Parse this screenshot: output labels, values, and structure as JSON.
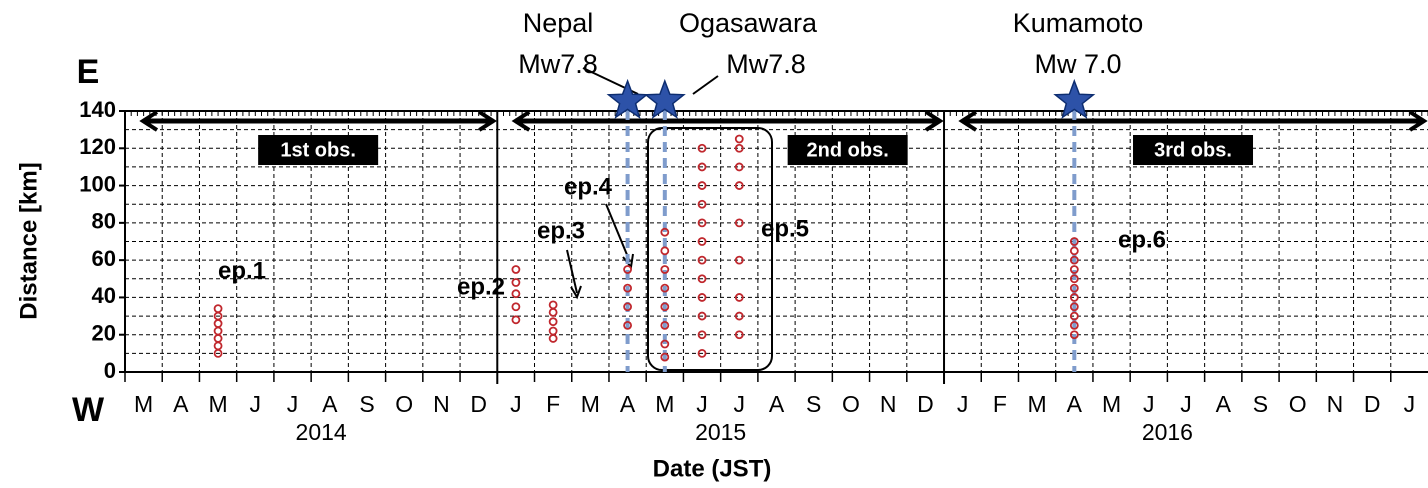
{
  "chart_data": {
    "type": "scatter",
    "xlabel": "Date (JST)",
    "ylabel": "Distance [km]",
    "xlim": [
      "2014-03",
      "2017-01"
    ],
    "xticks": [
      {
        "value": "2014-03",
        "label": "M"
      },
      {
        "value": "2014-04",
        "label": "A"
      },
      {
        "value": "2014-05",
        "label": "M"
      },
      {
        "value": "2014-06",
        "label": "J"
      },
      {
        "value": "2014-07",
        "label": "J"
      },
      {
        "value": "2014-08",
        "label": "A"
      },
      {
        "value": "2014-09",
        "label": "S"
      },
      {
        "value": "2014-10",
        "label": "O"
      },
      {
        "value": "2014-11",
        "label": "N"
      },
      {
        "value": "2014-12",
        "label": "D"
      },
      {
        "value": "2015-01",
        "label": "J"
      },
      {
        "value": "2015-02",
        "label": "F"
      },
      {
        "value": "2015-03",
        "label": "M"
      },
      {
        "value": "2015-04",
        "label": "A"
      },
      {
        "value": "2015-05",
        "label": "M"
      },
      {
        "value": "2015-06",
        "label": "J"
      },
      {
        "value": "2015-07",
        "label": "J"
      },
      {
        "value": "2015-08",
        "label": "A"
      },
      {
        "value": "2015-09",
        "label": "S"
      },
      {
        "value": "2015-10",
        "label": "O"
      },
      {
        "value": "2015-11",
        "label": "N"
      },
      {
        "value": "2015-12",
        "label": "D"
      },
      {
        "value": "2016-01",
        "label": "J"
      },
      {
        "value": "2016-02",
        "label": "F"
      },
      {
        "value": "2016-03",
        "label": "M"
      },
      {
        "value": "2016-04",
        "label": "A"
      },
      {
        "value": "2016-05",
        "label": "M"
      },
      {
        "value": "2016-06",
        "label": "J"
      },
      {
        "value": "2016-07",
        "label": "J"
      },
      {
        "value": "2016-08",
        "label": "A"
      },
      {
        "value": "2016-09",
        "label": "S"
      },
      {
        "value": "2016-10",
        "label": "O"
      },
      {
        "value": "2016-11",
        "label": "N"
      },
      {
        "value": "2016-12",
        "label": "D"
      },
      {
        "value": "2017-01",
        "label": "J"
      }
    ],
    "years": [
      "2014",
      "2015",
      "2016"
    ],
    "ylim": [
      0,
      140
    ],
    "yticks": [
      0,
      20,
      40,
      60,
      80,
      100,
      120,
      140
    ],
    "minor_yticks": [
      10,
      30,
      50,
      70,
      90,
      110,
      130
    ],
    "grid": true,
    "color": "#c0272d",
    "x": [
      "2014-05",
      "2014-05",
      "2014-05",
      "2014-05",
      "2014-05",
      "2014-05",
      "2014-05",
      "2015-01",
      "2015-01",
      "2015-01",
      "2015-01",
      "2015-01",
      "2015-02",
      "2015-02",
      "2015-02",
      "2015-02",
      "2015-02",
      "2015-04",
      "2015-04",
      "2015-04",
      "2015-04",
      "2015-05",
      "2015-05",
      "2015-05",
      "2015-05",
      "2015-05",
      "2015-05",
      "2015-05",
      "2015-05",
      "2015-06",
      "2015-06",
      "2015-06",
      "2015-06",
      "2015-06",
      "2015-06",
      "2015-06",
      "2015-06",
      "2015-06",
      "2015-06",
      "2015-06",
      "2015-06",
      "2015-07",
      "2015-07",
      "2015-07",
      "2015-07",
      "2015-07",
      "2015-07",
      "2015-07",
      "2015-07",
      "2015-07",
      "2016-04",
      "2016-04",
      "2016-04",
      "2016-04",
      "2016-04",
      "2016-04",
      "2016-04",
      "2016-04",
      "2016-04",
      "2016-04",
      "2016-04"
    ],
    "y": [
      10,
      14,
      18,
      22,
      26,
      30,
      34,
      28,
      35,
      42,
      48,
      55,
      18,
      22,
      27,
      32,
      36,
      25,
      35,
      45,
      55,
      8,
      15,
      25,
      35,
      45,
      55,
      65,
      75,
      10,
      20,
      30,
      40,
      50,
      60,
      70,
      80,
      90,
      100,
      110,
      120,
      20,
      30,
      40,
      60,
      80,
      100,
      110,
      120,
      125,
      20,
      25,
      30,
      35,
      40,
      45,
      50,
      55,
      60,
      65,
      70
    ],
    "events": [
      {
        "name": "Nepal",
        "magnitude": "Mw7.8",
        "date": "2015-04"
      },
      {
        "name": "Ogasawara",
        "magnitude": "Mw7.8",
        "date": "2015-05"
      },
      {
        "name": "Kumamoto",
        "magnitude": "Mw 7.0",
        "date": "2016-04"
      }
    ],
    "observations": [
      {
        "label": "1st obs.",
        "start": "2014-03",
        "end": "2014-12"
      },
      {
        "label": "2nd obs.",
        "start": "2015-01",
        "end": "2015-12"
      },
      {
        "label": "3rd obs.",
        "start": "2016-01",
        "end": "2017-01"
      }
    ],
    "annotations": [
      "E",
      "W",
      "ep.1",
      "ep.2",
      "ep.3",
      "ep.4",
      "ep.5",
      "ep.6"
    ]
  }
}
